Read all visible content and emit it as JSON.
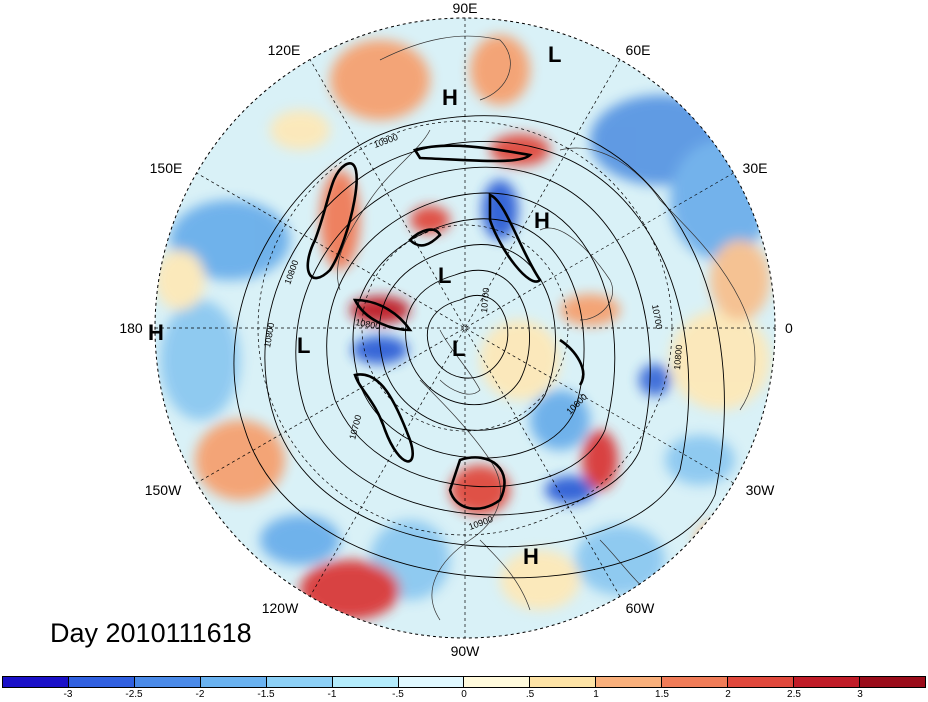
{
  "title": "Day 2010111618",
  "longitude_labels": {
    "n90e": "90E",
    "n60e": "60E",
    "n30e": "30E",
    "n0": "0",
    "n30w": "30W",
    "n60w": "60W",
    "n90w": "90W",
    "n120w": "120W",
    "n150w": "150W",
    "n180": "180",
    "n150e": "150E",
    "n120e": "120E"
  },
  "pressure_centers": [
    {
      "label": "L"
    },
    {
      "label": "H"
    },
    {
      "label": "H"
    },
    {
      "label": "L"
    },
    {
      "label": "L"
    },
    {
      "label": "L"
    },
    {
      "label": "H"
    },
    {
      "label": "H"
    }
  ],
  "contour_labels": [
    "10900",
    "10800",
    "10800",
    "10700",
    "10700",
    "10800",
    "10700",
    "10800",
    "10600",
    "10900"
  ],
  "colorbar": {
    "ticks": [
      "-3",
      "-2.5",
      "-2",
      "-1.5",
      "-1",
      "-.5",
      "0",
      ".5",
      "1",
      "1.5",
      "2",
      "2.5",
      "3"
    ],
    "colors": [
      "#1a10c8",
      "#3060e0",
      "#4a8ae8",
      "#6ab2f0",
      "#8dd0f6",
      "#b4ecfc",
      "#e0f8ff",
      "#fffadc",
      "#fde3a6",
      "#f9b07c",
      "#f07c58",
      "#e0483c",
      "#c01c28",
      "#9a0c1a"
    ]
  },
  "anomaly_palette": {
    "strong_neg": "#2e60d6",
    "mod_neg": "#6aaeea",
    "weak_neg": "#b6e4f8",
    "neutral": "#eef9f2",
    "weak_pos": "#fde8b8",
    "mod_pos": "#f5a070",
    "strong_pos": "#d93838"
  }
}
